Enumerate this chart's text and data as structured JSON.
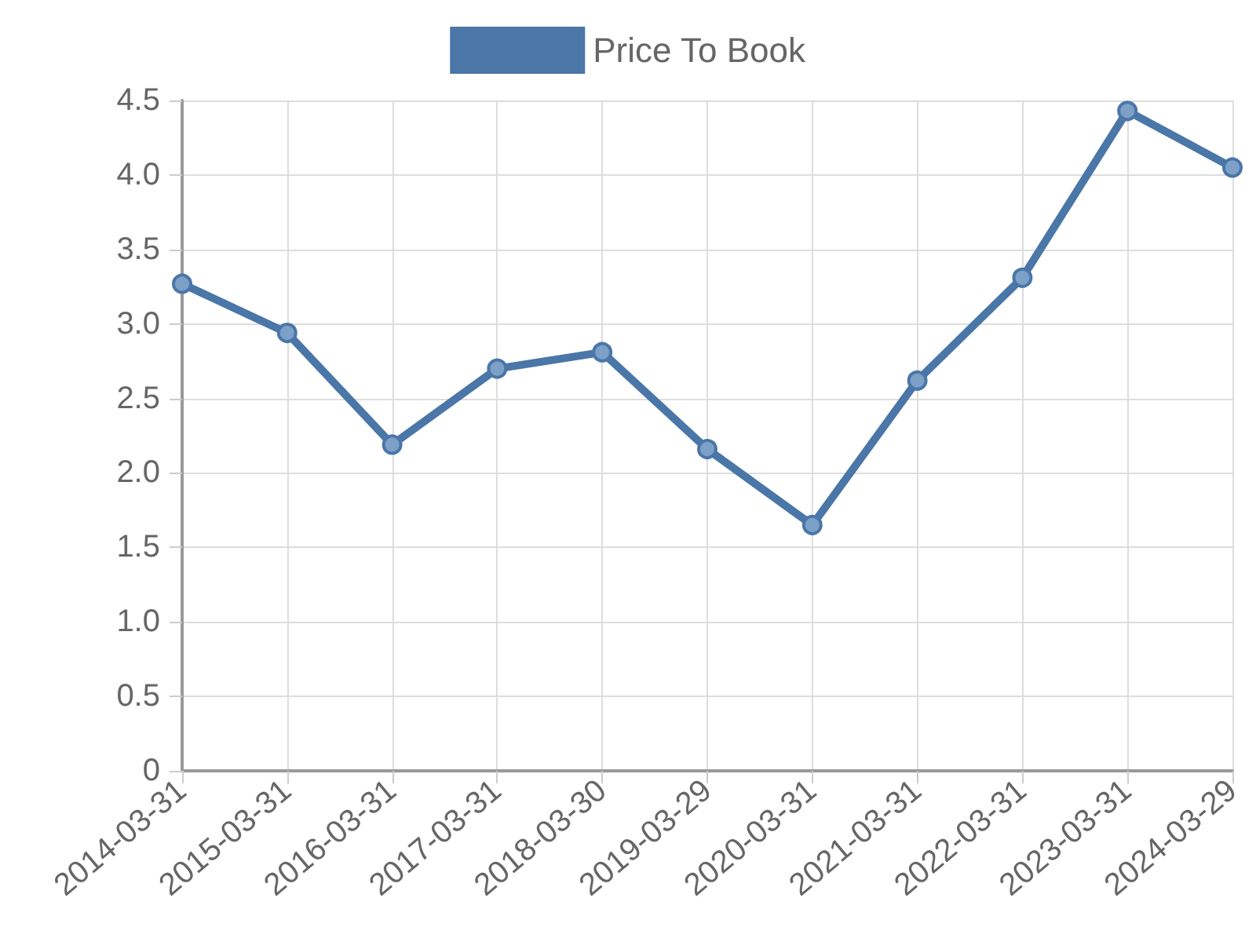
{
  "chart_data": {
    "type": "line",
    "categories": [
      "2014-03-31",
      "2015-03-31",
      "2016-03-31",
      "2017-03-31",
      "2018-03-30",
      "2019-03-29",
      "2020-03-31",
      "2021-03-31",
      "2022-03-31",
      "2023-03-31",
      "2024-03-29"
    ],
    "series": [
      {
        "name": "Price To Book",
        "color": "#4a76a8",
        "values": [
          3.27,
          2.94,
          2.19,
          2.7,
          2.81,
          2.16,
          1.65,
          2.62,
          3.31,
          4.43,
          4.05
        ]
      }
    ],
    "ylim": [
      0,
      4.5
    ],
    "yticks": [
      {
        "value": 0,
        "label": "0"
      },
      {
        "value": 0.5,
        "label": "0.5"
      },
      {
        "value": 1,
        "label": "1.0"
      },
      {
        "value": 1.5,
        "label": "1.5"
      },
      {
        "value": 2,
        "label": "2.0"
      },
      {
        "value": 2.5,
        "label": "2.5"
      },
      {
        "value": 3,
        "label": "3.0"
      },
      {
        "value": 3.5,
        "label": "3.5"
      },
      {
        "value": 4,
        "label": "4.0"
      },
      {
        "value": 4.5,
        "label": "4.5"
      }
    ],
    "grid": true,
    "legend": "top",
    "marker": "circle",
    "line_style": "solid"
  }
}
